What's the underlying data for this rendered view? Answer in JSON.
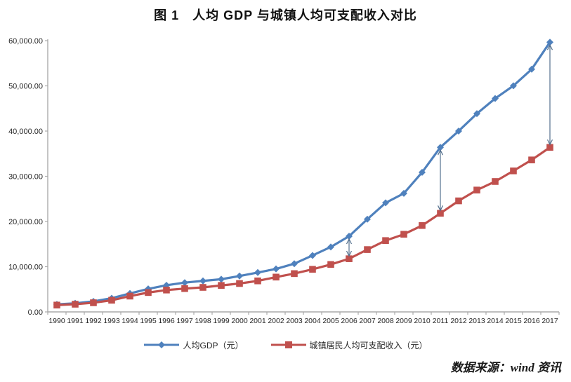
{
  "title": "图 1　人均 GDP 与城镇人均可支配收入对比",
  "source_note": "数据来源：wind 资讯",
  "colors": {
    "gdp_series": "#4f81bd",
    "income_series": "#c0504d",
    "axis": "#aaaaaa",
    "tick_text": "#262626",
    "arrow": "#54708e",
    "title_text": "#111111"
  },
  "legend": {
    "items": [
      {
        "label": "人均GDP（元）",
        "marker": "diamond",
        "color": "#4f81bd"
      },
      {
        "label": "城镇居民人均可支配收入（元）",
        "marker": "square",
        "color": "#c0504d"
      }
    ]
  },
  "chart_data": {
    "type": "line",
    "title": "图 1　人均 GDP 与城镇人均可支配收入对比",
    "x": [
      1990,
      1991,
      1992,
      1993,
      1994,
      1995,
      1996,
      1997,
      1998,
      1999,
      2000,
      2001,
      2002,
      2003,
      2004,
      2005,
      2006,
      2007,
      2008,
      2009,
      2010,
      2011,
      2012,
      2013,
      2014,
      2015,
      2016,
      2017
    ],
    "series": [
      {
        "name": "人均GDP（元）",
        "marker": "diamond",
        "color": "#4f81bd",
        "values": [
          1663,
          1912,
          2334,
          3027,
          4081,
          5091,
          5898,
          6481,
          6860,
          7229,
          7942,
          8717,
          9506,
          10666,
          12487,
          14368,
          16738,
          20505,
          24121,
          26222,
          30876,
          36403,
          40007,
          43852,
          47203,
          50028,
          53680,
          59660
        ]
      },
      {
        "name": "城镇居民人均可支配收入（元）",
        "marker": "square",
        "color": "#c0504d",
        "values": [
          1510,
          1701,
          2027,
          2577,
          3496,
          4283,
          4839,
          5160,
          5425,
          5854,
          6280,
          6860,
          7703,
          8472,
          9422,
          10493,
          11759,
          13786,
          15781,
          17175,
          19109,
          21810,
          24565,
          26955,
          28844,
          31195,
          33616,
          36396
        ]
      }
    ],
    "xlabel": "",
    "ylabel": "",
    "ylim": [
      0,
      60000
    ],
    "y_ticks": [
      0,
      10000,
      20000,
      30000,
      40000,
      50000,
      60000
    ],
    "y_tick_labels": [
      "0.00",
      "10,000.00",
      "20,000.00",
      "30,000.00",
      "40,000.00",
      "50,000.00",
      "60,000.00"
    ],
    "grid": false,
    "legend_position": "bottom",
    "annotations": {
      "gap_arrow_years": [
        2006,
        2011,
        2017
      ]
    }
  }
}
